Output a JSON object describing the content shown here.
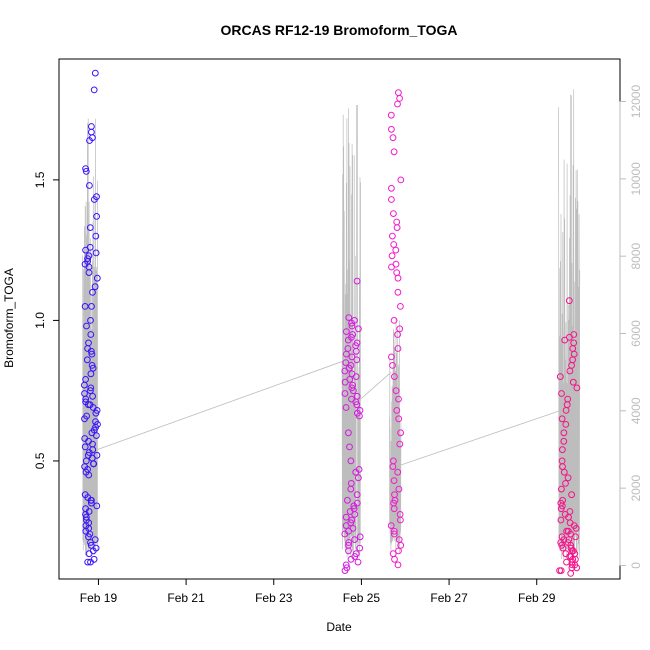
{
  "chart_data": {
    "type": "scatter",
    "title": "ORCAS RF12-19 Bromoform_TOGA",
    "xlabel": "Date",
    "ylabel": "Bromoform_TOGA",
    "x_ticks": [
      "Feb 19",
      "Feb 21",
      "Feb 23",
      "Feb 25",
      "Feb 27",
      "Feb 29"
    ],
    "x_tick_days": [
      19,
      21,
      23,
      25,
      27,
      29
    ],
    "xlim": [
      18.1,
      30.9
    ],
    "ylim": [
      0.08,
      1.93
    ],
    "y_ticks": [
      0.5,
      1.0,
      1.5
    ],
    "y_tick_labels": [
      "0.5",
      "1.0",
      "1.5"
    ],
    "y2_ticks": [
      0,
      2000,
      4000,
      6000,
      8000,
      10000,
      12000
    ],
    "y2_tick_labels": [
      "0",
      "2000",
      "4000",
      "6000",
      "8000",
      "10000",
      "12000"
    ],
    "y2lim": [
      -350,
      13100
    ],
    "grid": false,
    "colors": {
      "flight1": "#3a12ff",
      "flight2": "#d61ae0",
      "flight3": "#f21ccc",
      "flight4": "#f7128a",
      "altitude_line": "#bdbdbd"
    },
    "series": [
      {
        "color_key": "flight1",
        "x_range": [
          18.68,
          18.98
        ],
        "values": [
          1.88,
          1.82,
          1.69,
          1.67,
          1.65,
          1.64,
          1.54,
          1.53,
          1.48,
          1.44,
          1.43,
          1.37,
          1.33,
          1.3,
          1.26,
          1.25,
          1.24,
          1.23,
          1.22,
          1.21,
          1.2,
          1.19,
          1.17,
          1.15,
          1.12,
          1.1,
          1.05,
          1.05,
          1.0,
          0.98,
          0.95,
          0.92,
          0.9,
          0.89,
          0.88,
          0.86,
          0.84,
          0.83,
          0.81,
          0.79,
          0.77,
          0.76,
          0.75,
          0.74,
          0.73,
          0.72,
          0.71,
          0.7,
          0.7,
          0.69,
          0.68,
          0.67,
          0.66,
          0.65,
          0.64,
          0.63,
          0.62,
          0.61,
          0.6,
          0.59,
          0.58,
          0.57,
          0.56,
          0.55,
          0.54,
          0.53,
          0.52,
          0.52,
          0.51,
          0.5,
          0.49,
          0.49,
          0.48,
          0.47,
          0.46,
          0.45,
          0.38,
          0.37,
          0.36,
          0.36,
          0.35,
          0.34,
          0.33,
          0.32,
          0.31,
          0.3,
          0.29,
          0.28,
          0.27,
          0.26,
          0.25,
          0.24,
          0.23,
          0.22,
          0.21,
          0.2,
          0.19,
          0.18,
          0.17,
          0.15,
          0.14,
          0.14
        ]
      },
      {
        "color_key": "flight2",
        "x_range": [
          24.62,
          24.98
        ],
        "values": [
          1.14,
          1.01,
          1.0,
          0.99,
          0.98,
          0.97,
          0.96,
          0.95,
          0.94,
          0.93,
          0.92,
          0.91,
          0.9,
          0.89,
          0.88,
          0.87,
          0.86,
          0.85,
          0.84,
          0.83,
          0.82,
          0.81,
          0.8,
          0.79,
          0.78,
          0.77,
          0.76,
          0.75,
          0.74,
          0.73,
          0.72,
          0.71,
          0.7,
          0.69,
          0.68,
          0.67,
          0.66,
          0.6,
          0.55,
          0.5,
          0.47,
          0.46,
          0.44,
          0.42,
          0.4,
          0.38,
          0.36,
          0.35,
          0.34,
          0.33,
          0.32,
          0.31,
          0.3,
          0.29,
          0.28,
          0.27,
          0.26,
          0.25,
          0.24,
          0.23,
          0.22,
          0.21,
          0.2,
          0.19,
          0.18,
          0.17,
          0.16,
          0.15,
          0.14,
          0.13,
          0.12,
          0.11
        ]
      },
      {
        "color_key": "flight3",
        "x_range": [
          25.68,
          25.9
        ],
        "values": [
          1.81,
          1.79,
          1.77,
          1.73,
          1.68,
          1.65,
          1.6,
          1.5,
          1.47,
          1.43,
          1.38,
          1.35,
          1.33,
          1.3,
          1.27,
          1.25,
          1.23,
          1.2,
          1.19,
          1.17,
          1.15,
          1.1,
          1.05,
          1.0,
          0.97,
          0.95,
          0.9,
          0.87,
          0.84,
          0.8,
          0.75,
          0.72,
          0.68,
          0.65,
          0.6,
          0.56,
          0.5,
          0.48,
          0.46,
          0.43,
          0.4,
          0.38,
          0.36,
          0.35,
          0.33,
          0.31,
          0.29,
          0.27,
          0.25,
          0.24,
          0.22,
          0.2,
          0.18,
          0.17,
          0.15,
          0.13
        ]
      },
      {
        "color_key": "flight4",
        "x_range": [
          29.52,
          29.92
        ],
        "values": [
          1.07,
          0.95,
          0.94,
          0.93,
          0.92,
          0.9,
          0.88,
          0.86,
          0.84,
          0.82,
          0.8,
          0.78,
          0.76,
          0.74,
          0.72,
          0.7,
          0.68,
          0.65,
          0.63,
          0.6,
          0.57,
          0.54,
          0.5,
          0.48,
          0.46,
          0.44,
          0.42,
          0.4,
          0.38,
          0.36,
          0.35,
          0.34,
          0.33,
          0.32,
          0.31,
          0.3,
          0.29,
          0.28,
          0.27,
          0.26,
          0.25,
          0.25,
          0.24,
          0.23,
          0.23,
          0.22,
          0.22,
          0.21,
          0.21,
          0.2,
          0.2,
          0.19,
          0.19,
          0.18,
          0.18,
          0.17,
          0.17,
          0.16,
          0.16,
          0.15,
          0.15,
          0.14,
          0.14,
          0.13,
          0.13,
          0.12,
          0.12,
          0.11,
          0.11,
          0.1
        ]
      }
    ],
    "altitude_trace": {
      "color_key": "altitude_line",
      "connectors": [
        {
          "x": [
            18.98,
            24.62
          ],
          "y": [
            3000,
            5300
          ]
        },
        {
          "x": [
            24.98,
            25.68
          ],
          "y": [
            4300,
            5000
          ]
        },
        {
          "x": [
            25.9,
            29.52
          ],
          "y": [
            2600,
            4000
          ]
        }
      ],
      "flights": [
        {
          "x_range": [
            18.64,
            18.98
          ],
          "max": 11900,
          "base": 200
        },
        {
          "x_range": [
            24.56,
            24.98
          ],
          "max": 11900,
          "base": 200,
          "tall_spike_x": 24.9
        },
        {
          "x_range": [
            25.64,
            25.9
          ],
          "max": 6500,
          "base": 300
        },
        {
          "x_range": [
            29.5,
            29.98
          ],
          "max": 12600,
          "base": 100
        }
      ]
    }
  }
}
